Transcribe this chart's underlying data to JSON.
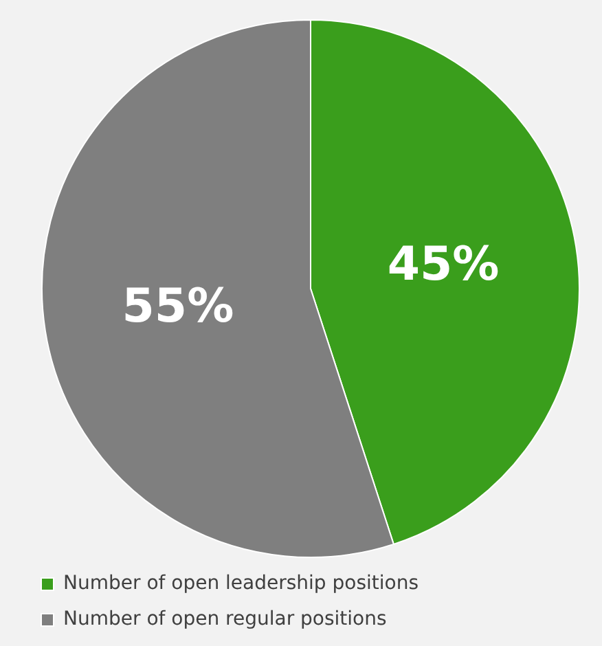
{
  "chart_data": {
    "type": "pie",
    "categories": [
      "Number of open leadership positions",
      "Number of open regular positions"
    ],
    "values": [
      45,
      55
    ],
    "colors": [
      "#3a9e1c",
      "#7f7f7f"
    ],
    "value_labels": [
      "45%",
      "55%"
    ],
    "legend": "bottom"
  }
}
